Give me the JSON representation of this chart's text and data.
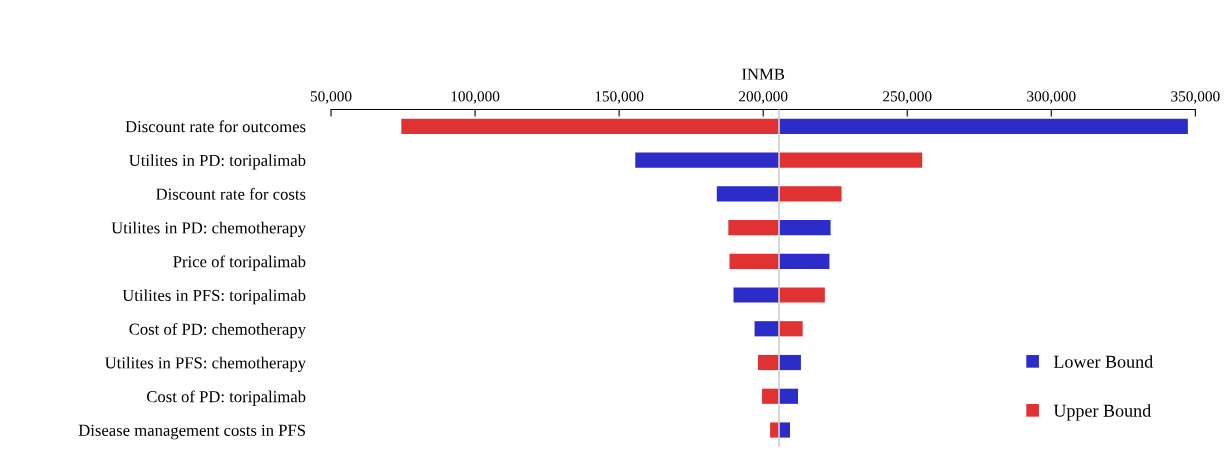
{
  "chart_data": {
    "type": "bar",
    "orientation": "horizontal",
    "xlabel": "INMB",
    "categories": [
      "Discount rate for outcomes",
      "Utilites in PD: toripalimab",
      "Discount rate for costs",
      "Utilites in PD: chemotherapy",
      "Price of toripalimab",
      "Utilites in PFS: toripalimab",
      "Cost of PD: chemotherapy",
      "Utilites in PFS: chemotherapy",
      "Cost of PD: toripalimab",
      "Disease management costs in PFS"
    ],
    "series": [
      {
        "name": "Lower Bound",
        "color": "#2c2cc8",
        "base": [
          205500,
          155600,
          183900,
          205500,
          205500,
          189700,
          197000,
          205500,
          205500,
          205500
        ],
        "values": [
          141900,
          49900,
          21600,
          17900,
          17500,
          15800,
          8500,
          7600,
          6600,
          3800
        ]
      },
      {
        "name": "Upper Bound",
        "color": "#e03232",
        "base": [
          74400,
          205500,
          205500,
          187900,
          188300,
          205500,
          205500,
          198200,
          199600,
          202400
        ],
        "values": [
          131100,
          49700,
          21700,
          17600,
          17200,
          15900,
          8200,
          7300,
          5900,
          3100
        ]
      }
    ],
    "xlim": [
      50000,
      350000
    ],
    "xticks": [
      {
        "value": 50000,
        "label": "50,000"
      },
      {
        "value": 100000,
        "label": "100,000"
      },
      {
        "value": 150000,
        "label": "150,000"
      },
      {
        "value": 200000,
        "label": "200,000"
      },
      {
        "value": 250000,
        "label": "250,000"
      },
      {
        "value": 300000,
        "label": "300,000"
      },
      {
        "value": 350000,
        "label": "350,000"
      }
    ],
    "ref_lines": [
      {
        "axis": "x",
        "value": 205500,
        "label": null,
        "color": "#d0d0d0"
      }
    ],
    "legend": "bottom right",
    "grid": false
  }
}
